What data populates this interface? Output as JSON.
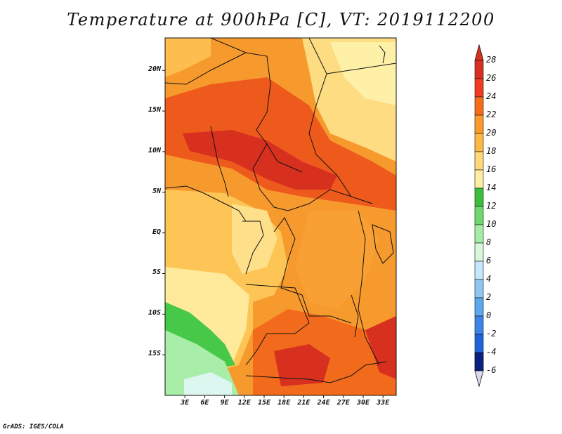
{
  "title": "Temperature at 900hPa [C], VT: 2019112200",
  "credit": "GrADS: IGES/COLA",
  "map": {
    "variable": "Temperature",
    "level": "900hPa",
    "unit": "C",
    "valid_time": "2019112200",
    "lon_range": [
      0,
      35
    ],
    "lat_range": [
      -20,
      24
    ],
    "lat_ticks": [
      "20N",
      "15N",
      "10N",
      "5N",
      "EQ",
      "5S",
      "10S",
      "15S"
    ],
    "lat_values": [
      20,
      15,
      10,
      5,
      0,
      -5,
      -10,
      -15
    ],
    "lon_ticks": [
      "3E",
      "6E",
      "9E",
      "12E",
      "15E",
      "18E",
      "21E",
      "24E",
      "27E",
      "30E",
      "33E"
    ],
    "lon_values": [
      3,
      6,
      9,
      12,
      15,
      18,
      21,
      24,
      27,
      30,
      33
    ]
  },
  "colorbar": {
    "labels": [
      "28",
      "26",
      "24",
      "22",
      "20",
      "18",
      "16",
      "14",
      "12",
      "10",
      "8",
      "6",
      "4",
      "2",
      "0",
      "-2",
      "-4",
      "-6"
    ],
    "colors": [
      "#a50f15",
      "#d7301f",
      "#f03b20",
      "#f76d15",
      "#fd9a2a",
      "#fdb844",
      "#fed976",
      "#ffeda0",
      "#3bbf3b",
      "#6dd96d",
      "#a6eea6",
      "#d8f8d8",
      "#c6e6fb",
      "#8ec8f2",
      "#5aa8ee",
      "#3a86e6",
      "#1f63d8",
      "#1845c0",
      "#0a1f80"
    ],
    "top_color": "#d7301f",
    "bottom_color": "#dcd8f0"
  }
}
